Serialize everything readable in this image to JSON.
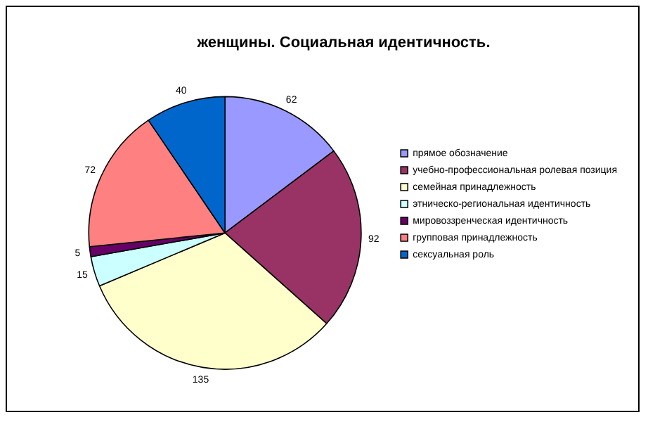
{
  "chart_data": {
    "type": "pie",
    "title": "женщины. Социальная идентичность.",
    "categories": [
      "прямое обозначение",
      "учебно-профессиональная ролевая позиция",
      "семейная принадлежность",
      "этническо-региональная идентичность",
      "мировоззренческая идентичность",
      "групповая принадлежность",
      "сексуальная роль"
    ],
    "values": [
      62,
      92,
      135,
      15,
      5,
      72,
      40
    ],
    "colors": [
      "#9999ff",
      "#993366",
      "#ffffcc",
      "#ccffff",
      "#660066",
      "#ff8080",
      "#0066cc"
    ],
    "data_labels": true,
    "legend": "right"
  }
}
